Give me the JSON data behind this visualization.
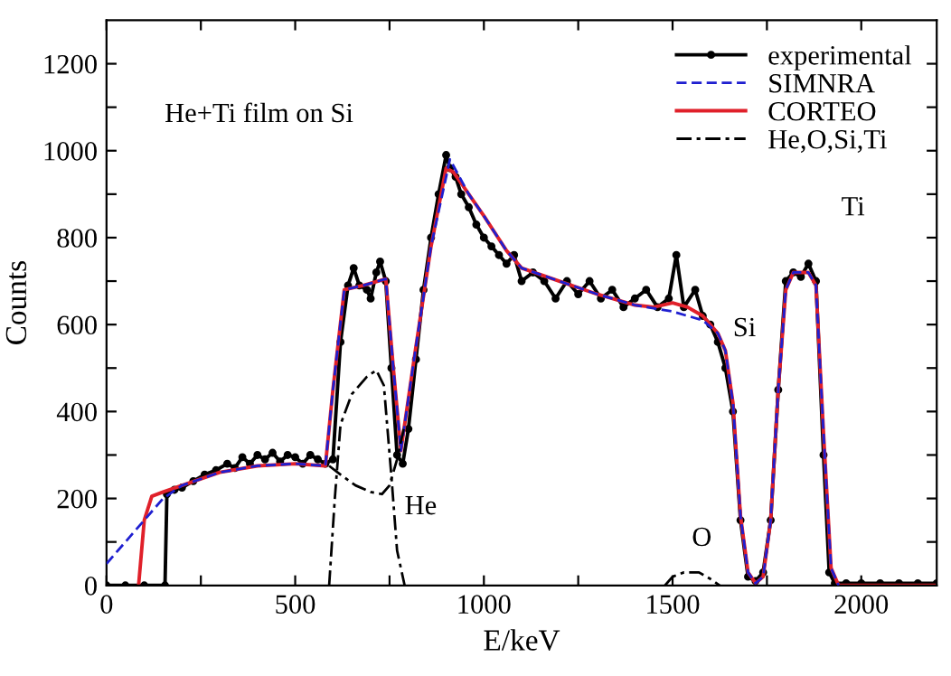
{
  "chart_data": {
    "type": "line",
    "xlabel": "E/keV",
    "ylabel": "Counts",
    "xlim": [
      0,
      2200
    ],
    "ylim": [
      0,
      1300
    ],
    "xticks": [
      0,
      {
        "value": 250,
        "label": null
      },
      500,
      {
        "value": 750,
        "label": null
      },
      1000,
      {
        "value": 1250,
        "label": null
      },
      1500,
      {
        "value": 1750,
        "label": null
      },
      2000
    ],
    "yticks": [
      0,
      {
        "value": 100,
        "label": null
      },
      200,
      {
        "value": 300,
        "label": null
      },
      400,
      {
        "value": 500,
        "label": null
      },
      600,
      {
        "value": 700,
        "label": null
      },
      800,
      {
        "value": 900,
        "label": null
      },
      1000,
      {
        "value": 1100,
        "label": null
      },
      1200
    ],
    "grid": false,
    "legend": "top right",
    "annotations": [
      "He+Ti film on Si",
      {
        "text": "He",
        "x": 790,
        "y": 150
      },
      "O",
      {
        "text": "Si",
        "x": 1660,
        "y": 560
      },
      "Ti"
    ],
    "series": [
      {
        "name": "experimental",
        "color": "#000000",
        "marker": "circle",
        "line_style": "solid",
        "x": [
          0,
          50,
          100,
          155,
          160,
          180,
          200,
          230,
          260,
          290,
          320,
          340,
          360,
          380,
          400,
          420,
          440,
          460,
          480,
          500,
          520,
          540,
          560,
          580,
          600,
          620,
          640,
          655,
          670,
          690,
          700,
          715,
          725,
          740,
          755,
          770,
          785,
          800,
          820,
          840,
          860,
          880,
          900,
          910,
          925,
          940,
          960,
          980,
          1000,
          1020,
          1040,
          1060,
          1080,
          1100,
          1130,
          1160,
          1190,
          1220,
          1250,
          1280,
          1310,
          1340,
          1370,
          1400,
          1430,
          1460,
          1490,
          1510,
          1530,
          1560,
          1580,
          1600,
          1620,
          1640,
          1660,
          1680,
          1700,
          1720,
          1740,
          1760,
          1780,
          1800,
          1820,
          1840,
          1860,
          1880,
          1900,
          1915,
          1930,
          1960,
          2000,
          2050,
          2100,
          2150,
          2200
        ],
        "values": [
          0,
          0,
          0,
          0,
          210,
          220,
          225,
          240,
          255,
          265,
          280,
          270,
          295,
          280,
          300,
          290,
          305,
          285,
          300,
          295,
          280,
          300,
          290,
          280,
          290,
          560,
          690,
          730,
          690,
          680,
          660,
          720,
          745,
          700,
          500,
          300,
          280,
          360,
          520,
          680,
          800,
          900,
          990,
          960,
          940,
          900,
          870,
          830,
          800,
          780,
          760,
          740,
          760,
          700,
          720,
          700,
          660,
          700,
          670,
          700,
          660,
          680,
          640,
          660,
          680,
          640,
          660,
          760,
          640,
          680,
          620,
          600,
          560,
          500,
          400,
          150,
          20,
          10,
          30,
          150,
          450,
          700,
          720,
          710,
          740,
          700,
          300,
          30,
          5,
          5,
          5,
          5,
          5,
          5,
          5
        ]
      },
      {
        "name": "SIMNRA",
        "color": "#1f1fd0",
        "marker": "none",
        "line_style": "dashed",
        "x": [
          0,
          50,
          100,
          150,
          200,
          300,
          400,
          500,
          580,
          600,
          630,
          680,
          740,
          760,
          780,
          820,
          860,
          910,
          960,
          1000,
          1060,
          1100,
          1200,
          1300,
          1400,
          1500,
          1580,
          1620,
          1640,
          1660,
          1680,
          1700,
          1720,
          1740,
          1760,
          1780,
          1800,
          1820,
          1860,
          1880,
          1900,
          1920,
          1940
        ],
        "values": [
          50,
          100,
          150,
          200,
          230,
          260,
          275,
          280,
          275,
          450,
          680,
          690,
          705,
          500,
          310,
          550,
          780,
          980,
          900,
          850,
          770,
          730,
          700,
          670,
          645,
          630,
          610,
          580,
          540,
          420,
          160,
          30,
          5,
          20,
          150,
          450,
          680,
          720,
          720,
          690,
          350,
          40,
          0
        ]
      },
      {
        "name": "CORTEO",
        "color": "#e0202a",
        "marker": "none",
        "line_style": "solid",
        "x": [
          85,
          100,
          120,
          150,
          200,
          300,
          400,
          500,
          580,
          600,
          630,
          680,
          740,
          760,
          780,
          820,
          860,
          900,
          920,
          960,
          1000,
          1060,
          1100,
          1200,
          1300,
          1400,
          1450,
          1500,
          1540,
          1580,
          1620,
          1640,
          1660,
          1680,
          1700,
          1720,
          1740,
          1760,
          1780,
          1800,
          1820,
          1860,
          1880,
          1900,
          1920,
          1940,
          2200
        ],
        "values": [
          0,
          150,
          205,
          215,
          230,
          260,
          275,
          280,
          275,
          450,
          680,
          690,
          705,
          500,
          310,
          550,
          780,
          960,
          950,
          900,
          850,
          770,
          730,
          700,
          670,
          645,
          640,
          650,
          640,
          620,
          580,
          540,
          420,
          160,
          30,
          5,
          20,
          150,
          450,
          680,
          720,
          720,
          690,
          350,
          40,
          0,
          0
        ]
      },
      {
        "name": "He,O,Si,Ti",
        "color": "#000000",
        "marker": "none",
        "line_style": "dashdot",
        "x": [
          590,
          605,
          620,
          650,
          690,
          715,
          735,
          755,
          770,
          790
        ],
        "values": [
          0,
          200,
          370,
          440,
          480,
          495,
          460,
          250,
          80,
          0
        ]
      },
      {
        "color": "#000000",
        "marker": "none",
        "line_style": "dashdot",
        "x": [
          590,
          620,
          660,
          700,
          730,
          750,
          770,
          790
        ],
        "values": [
          275,
          255,
          230,
          215,
          210,
          230,
          290,
          370
        ]
      },
      {
        "color": "#000000",
        "marker": "none",
        "line_style": "dashdot",
        "x": [
          1480,
          1500,
          1530,
          1570,
          1600,
          1625
        ],
        "values": [
          0,
          20,
          30,
          30,
          15,
          0
        ]
      }
    ]
  }
}
